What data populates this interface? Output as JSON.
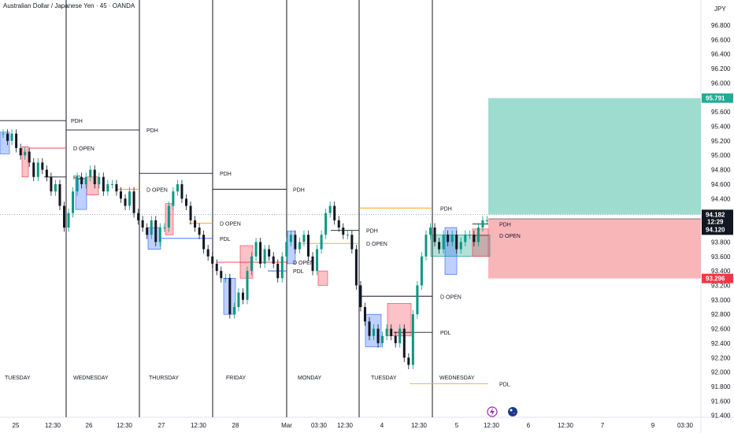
{
  "title": "Australian Dollar / Japanese Yen · 45 · OANDA",
  "currency": "JPY",
  "colors": {
    "up": "#089981",
    "down": "#131722",
    "profit_zone": "#9edcd0",
    "loss_zone": "#f8b6b9",
    "profit_badge": "#22ab94",
    "loss_badge": "#f23645",
    "pdh": "#131722",
    "dopen_orange": "#f7a21b",
    "dopen_red": "#f23645",
    "pdl_blue": "#2962ff"
  },
  "icons": [
    "lightning-icon",
    "australia-flag-icon"
  ],
  "chart_data": {
    "type": "candlestick",
    "y_axis": {
      "min": 91.4,
      "max": 97.0,
      "ticks": [
        "96.800",
        "96.600",
        "96.400",
        "96.200",
        "96.000",
        "95.600",
        "95.400",
        "95.200",
        "95.000",
        "94.800",
        "94.600",
        "94.400",
        "93.800",
        "93.600",
        "93.400",
        "93.200",
        "93.000",
        "92.800",
        "92.600",
        "92.400",
        "92.200",
        "92.000",
        "91.800",
        "91.600",
        "91.400"
      ]
    },
    "x_axis": {
      "ticks": [
        "25",
        "12:30",
        "26",
        "12:30",
        "27",
        "12:30",
        "28",
        "Mar",
        "03:30",
        "12:30",
        "4",
        "12:30",
        "5",
        "12:30",
        "6",
        "12:30",
        "7",
        "9",
        "03:30"
      ]
    },
    "day_labels": [
      "TUESDAY",
      "WEDNESDAY",
      "THURSDAY",
      "FRIDAY",
      "MONDAY",
      "TUESDAY",
      "WEDNESDAY"
    ],
    "price_badges": {
      "target": "95.791",
      "current": "94.182",
      "countdown": "12:29",
      "entry": "94.120",
      "stop": "93.296"
    },
    "levels": [
      {
        "label": "PDH",
        "price": 95.48
      },
      {
        "label": "D OPEN",
        "price": 95.1
      },
      {
        "label": "PDL",
        "price": 94.7
      },
      {
        "label": "PDH",
        "price": 95.35
      },
      {
        "label": "D OPEN",
        "price": 94.53
      },
      {
        "label": "PDH",
        "price": 94.75
      },
      {
        "label": "D OPEN",
        "price": 94.06
      },
      {
        "label": "PDL",
        "price": 93.85
      },
      {
        "label": "PDH",
        "price": 94.53
      },
      {
        "label": "D OPEN",
        "price": 93.52
      },
      {
        "label": "PDL",
        "price": 93.4
      },
      {
        "label": "PDH",
        "price": 93.96
      },
      {
        "label": "D OPEN",
        "price": 93.78
      },
      {
        "label": "PDH",
        "price": 94.27
      },
      {
        "label": "PDH",
        "price": 94.05
      },
      {
        "label": "D OPEN",
        "price": 93.89
      },
      {
        "label": "D OPEN",
        "price": 93.05
      },
      {
        "label": "PDL",
        "price": 92.55
      },
      {
        "label": "PDL",
        "price": 91.84
      }
    ],
    "candles_close": [
      95.3,
      95.2,
      95.3,
      95.1,
      95.0,
      95.05,
      94.9,
      94.7,
      94.9,
      94.8,
      94.7,
      94.5,
      94.6,
      94.3,
      94.0,
      94.2,
      94.5,
      94.7,
      94.6,
      94.7,
      94.8,
      94.6,
      94.7,
      94.5,
      94.6,
      94.6,
      94.5,
      94.4,
      94.3,
      94.5,
      94.2,
      94.1,
      94.0,
      93.9,
      94.1,
      93.8,
      94.0,
      94.0,
      94.3,
      94.5,
      94.6,
      94.4,
      94.3,
      94.1,
      94.0,
      93.9,
      93.7,
      93.6,
      93.5,
      93.4,
      93.3,
      93.3,
      92.8,
      92.9,
      93.1,
      93.0,
      93.4,
      93.6,
      93.8,
      93.5,
      93.7,
      93.6,
      93.5,
      93.3,
      93.6,
      93.8,
      93.9,
      93.7,
      93.8,
      93.9,
      93.6,
      93.4,
      93.7,
      93.9,
      94.2,
      94.3,
      94.1,
      94.0,
      93.9,
      93.9,
      93.7,
      93.2,
      92.9,
      92.7,
      92.5,
      92.6,
      92.4,
      92.5,
      92.6,
      92.5,
      92.4,
      92.6,
      92.2,
      92.1,
      92.8,
      93.2,
      93.6,
      93.9,
      94.0,
      93.8,
      93.7,
      93.9,
      93.8,
      93.9,
      93.7,
      93.8,
      93.9,
      93.9,
      93.8,
      94.0,
      94.1,
      94.1
    ]
  }
}
